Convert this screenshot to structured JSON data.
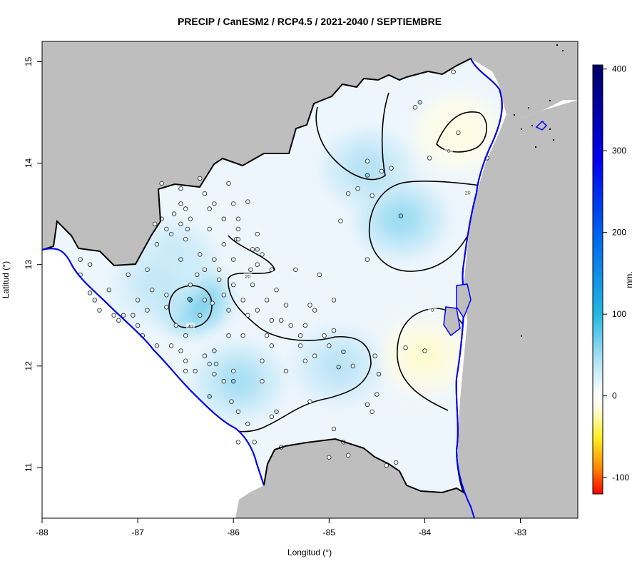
{
  "title": "PRECIP / CanESM2 / RCP4.5 / 2021-2040 / SEPTIEMBRE",
  "x_axis": {
    "label": "Longitud (°)",
    "ticks": [
      "-88",
      "-87",
      "-86",
      "-85",
      "-84",
      "-83"
    ]
  },
  "y_axis": {
    "label": "Latitud (°)",
    "ticks": [
      "15",
      "14",
      "13",
      "12",
      "11"
    ]
  },
  "colorbar": {
    "unit_label": "mm.",
    "ticks": [
      "400",
      "300",
      "200",
      "100",
      "0",
      "-100"
    ],
    "min": -120,
    "max": 405
  },
  "colors": {
    "land_outside": "#bebebe",
    "sea": "#ffffff",
    "coastline": "#0000ff",
    "border": "#000000",
    "contour": "#000000"
  },
  "chart_data": {
    "type": "heatmap",
    "title": "PRECIP / CanESM2 / RCP4.5 / 2021-2040 / SEPTIEMBRE",
    "xlabel": "Longitud (°)",
    "ylabel": "Latitud (°)",
    "xlim": [
      -88,
      -82.4
    ],
    "ylim": [
      10.5,
      15.2
    ],
    "colorbar_label": "mm.",
    "colorbar_range": [
      -120,
      405
    ],
    "contour_labels": [
      {
        "text": "0",
        "lon": -83.75,
        "lat": 14.12
      },
      {
        "text": "20",
        "lon": -83.55,
        "lat": 13.71
      },
      {
        "text": "40",
        "lon": -86.45,
        "lat": 12.39
      },
      {
        "text": "0",
        "lon": -83.92,
        "lat": 12.55
      },
      {
        "text": "20",
        "lon": -85.85,
        "lat": 12.88
      }
    ],
    "hotspots": [
      {
        "lon": -86.45,
        "lat": 12.65,
        "value": 80
      },
      {
        "lon": -84.25,
        "lat": 13.45,
        "value": 55
      },
      {
        "lon": -85.95,
        "lat": 11.85,
        "value": 50
      },
      {
        "lon": -84.9,
        "lat": 12.0,
        "value": 42
      },
      {
        "lon": -84.6,
        "lat": 13.95,
        "value": 45
      },
      {
        "lon": -86.65,
        "lat": 13.05,
        "value": 40
      },
      {
        "lon": -86.8,
        "lat": 12.8,
        "value": 38
      },
      {
        "lon": -83.65,
        "lat": 14.3,
        "value": -15
      },
      {
        "lon": -84.0,
        "lat": 12.1,
        "value": -18
      }
    ],
    "stations": [
      [
        -83.65,
        14.3,
        -10
      ],
      [
        -84.0,
        12.15,
        -20
      ],
      [
        -84.55,
        13.68,
        -5
      ],
      [
        -83.95,
        14.05,
        -5
      ],
      [
        -86.5,
        13.25,
        -2
      ],
      [
        -85.97,
        13.25,
        -5
      ],
      [
        -84.95,
        12.35,
        -5
      ],
      [
        -86.15,
        12.95,
        -2
      ],
      [
        -86.45,
        12.65,
        80
      ],
      [
        -86.46,
        12.66,
        85
      ],
      [
        -84.25,
        13.48,
        70
      ],
      [
        -84.6,
        13.88,
        65
      ],
      [
        -86.0,
        11.85,
        60
      ],
      [
        -86.25,
        11.7,
        55
      ],
      [
        -84.85,
        12.14,
        55
      ],
      [
        -84.9,
        11.99,
        50
      ],
      [
        -84.05,
        14.6,
        45
      ],
      [
        -85.55,
        11.55,
        40
      ],
      [
        -86.05,
        12.55,
        35
      ],
      [
        -87.05,
        12.5,
        30
      ],
      [
        -86.2,
        12.15,
        30
      ],
      [
        -86.55,
        13.05,
        30
      ],
      [
        -87.15,
        12.5,
        28
      ],
      [
        -86.18,
        12.02,
        28
      ],
      [
        -84.75,
        12.0,
        25
      ],
      [
        -84.48,
        11.92,
        25
      ],
      [
        -87.5,
        12.72,
        25
      ],
      [
        -85.75,
        13.15,
        25
      ],
      [
        -87.0,
        12.4,
        22
      ],
      [
        -84.6,
        13.05,
        20
      ],
      [
        -86.0,
        13.05,
        22
      ],
      [
        -86.35,
        13.1,
        20
      ],
      [
        -86.62,
        13.5,
        20
      ],
      [
        -86.1,
        13.45,
        18
      ],
      [
        -86.75,
        13.8,
        15
      ],
      [
        -86.3,
        13.7,
        15
      ],
      [
        -85.95,
        13.25,
        15
      ],
      [
        -86.48,
        13.35,
        15
      ],
      [
        -85.5,
        12.45,
        15
      ],
      [
        -85.3,
        12.3,
        15
      ],
      [
        -85.25,
        12.05,
        10
      ],
      [
        -85.45,
        11.95,
        10
      ],
      [
        -85.6,
        11.5,
        10
      ],
      [
        -85.2,
        11.65,
        10
      ],
      [
        -85.85,
        11.43,
        15
      ],
      [
        -85.78,
        11.25,
        10
      ],
      [
        -85.5,
        11.2,
        10
      ],
      [
        -85.0,
        11.1,
        10
      ],
      [
        -84.6,
        11.62,
        10
      ],
      [
        -84.4,
        11.02,
        5
      ],
      [
        -84.95,
        11.38,
        12
      ],
      [
        -84.8,
        11.12,
        10
      ],
      [
        -84.52,
        12.1,
        8
      ],
      [
        -84.2,
        12.18,
        5
      ],
      [
        -84.5,
        11.72,
        10
      ],
      [
        -83.35,
        14.05,
        5
      ],
      [
        -84.35,
        13.95,
        10
      ],
      [
        -84.45,
        13.92,
        10
      ],
      [
        -84.6,
        14.02,
        20
      ],
      [
        -84.1,
        14.55,
        5
      ],
      [
        -83.7,
        14.9,
        5
      ],
      [
        -84.88,
        13.43,
        5
      ],
      [
        -84.7,
        13.75,
        5
      ],
      [
        -85.75,
        13.3,
        10
      ],
      [
        -85.95,
        13.35,
        10
      ],
      [
        -86.2,
        13.05,
        10
      ],
      [
        -85.6,
        12.95,
        10
      ],
      [
        -85.35,
        12.95,
        10
      ],
      [
        -85.1,
        12.9,
        10
      ],
      [
        -85.2,
        12.6,
        10
      ],
      [
        -85.45,
        12.6,
        10
      ],
      [
        -85.6,
        12.45,
        10
      ],
      [
        -85.85,
        12.5,
        10
      ],
      [
        -85.6,
        12.2,
        10
      ],
      [
        -85.15,
        12.1,
        10
      ],
      [
        -85.0,
        12.2,
        10
      ],
      [
        -85.7,
        12.05,
        10
      ],
      [
        -86.5,
        12.05,
        15
      ],
      [
        -86.3,
        12.1,
        15
      ],
      [
        -86.5,
        12.3,
        20
      ],
      [
        -86.6,
        12.4,
        20
      ],
      [
        -86.7,
        12.58,
        15
      ],
      [
        -86.38,
        12.9,
        15
      ],
      [
        -86.3,
        12.65,
        20
      ],
      [
        -86.1,
        12.7,
        15
      ],
      [
        -85.9,
        12.3,
        10
      ],
      [
        -85.7,
        11.85,
        10
      ],
      [
        -86.0,
        11.95,
        15
      ],
      [
        -86.4,
        11.95,
        20
      ],
      [
        -86.2,
        11.92,
        20
      ],
      [
        -86.1,
        11.85,
        20
      ],
      [
        -86.25,
        12.02,
        20
      ],
      [
        -86.02,
        11.65,
        15
      ],
      [
        -85.95,
        11.55,
        15
      ],
      [
        -86.5,
        11.95,
        15
      ],
      [
        -86.7,
        12.7,
        20
      ],
      [
        -86.9,
        12.95,
        15
      ],
      [
        -86.85,
        12.75,
        15
      ],
      [
        -87.0,
        12.65,
        20
      ],
      [
        -87.1,
        12.9,
        15
      ],
      [
        -87.3,
        12.75,
        20
      ],
      [
        -87.45,
        12.65,
        25
      ],
      [
        -87.5,
        13.0,
        25
      ],
      [
        -87.25,
        12.5,
        20
      ],
      [
        -87.2,
        12.45,
        15
      ],
      [
        -86.9,
        12.55,
        15
      ],
      [
        -86.95,
        12.3,
        15
      ],
      [
        -86.65,
        12.2,
        15
      ],
      [
        -86.8,
        13.2,
        15
      ],
      [
        -86.7,
        13.35,
        15
      ],
      [
        -86.5,
        13.55,
        10
      ],
      [
        -86.45,
        13.45,
        10
      ],
      [
        -86.25,
        13.35,
        10
      ],
      [
        -86.1,
        13.2,
        10
      ],
      [
        -85.75,
        13.0,
        10
      ],
      [
        -85.8,
        12.8,
        10
      ],
      [
        -85.65,
        12.65,
        10
      ],
      [
        -85.9,
        12.65,
        10
      ],
      [
        -86.0,
        12.8,
        10
      ],
      [
        -86.15,
        12.85,
        10
      ],
      [
        -86.3,
        12.95,
        10
      ],
      [
        -85.82,
        12.95,
        10
      ],
      [
        -85.7,
        13.1,
        10
      ],
      [
        -85.65,
        12.3,
        10
      ],
      [
        -85.3,
        12.2,
        10
      ],
      [
        -85.25,
        12.4,
        10
      ],
      [
        -86.2,
        13.6,
        15
      ],
      [
        -86.0,
        13.6,
        10
      ],
      [
        -86.05,
        13.8,
        10
      ],
      [
        -86.35,
        13.85,
        10
      ],
      [
        -86.55,
        13.6,
        15
      ],
      [
        -86.55,
        13.75,
        10
      ],
      [
        -86.65,
        13.3,
        15
      ],
      [
        -86.82,
        13.4,
        15
      ],
      [
        -86.75,
        13.45,
        15
      ],
      [
        -86.25,
        13.55,
        12
      ],
      [
        -85.85,
        13.62,
        10
      ],
      [
        -85.95,
        13.45,
        10
      ],
      [
        -85.8,
        13.15,
        10
      ],
      [
        -84.8,
        13.7,
        5
      ],
      [
        -84.85,
        11.25,
        10
      ],
      [
        -84.55,
        11.55,
        10
      ],
      [
        -84.3,
        11.05,
        10
      ],
      [
        -85.95,
        11.25,
        12
      ],
      [
        -86.35,
        12.5,
        25
      ],
      [
        -86.45,
        12.8,
        20
      ],
      [
        -86.22,
        12.62,
        18
      ],
      [
        -85.55,
        12.75,
        10
      ],
      [
        -85.15,
        12.55,
        10
      ],
      [
        -84.95,
        12.65,
        10
      ],
      [
        -85.4,
        12.4,
        10
      ],
      [
        -85.05,
        12.3,
        10
      ],
      [
        -87.4,
        12.55,
        20
      ],
      [
        -87.6,
        13.05,
        20
      ],
      [
        -87.6,
        12.9,
        20
      ],
      [
        -86.8,
        12.2,
        15
      ],
      [
        -86.55,
        12.15,
        15
      ],
      [
        -86.05,
        12.3,
        12
      ],
      [
        -85.75,
        12.55,
        10
      ],
      [
        -86.55,
        13.4,
        15
      ]
    ]
  }
}
